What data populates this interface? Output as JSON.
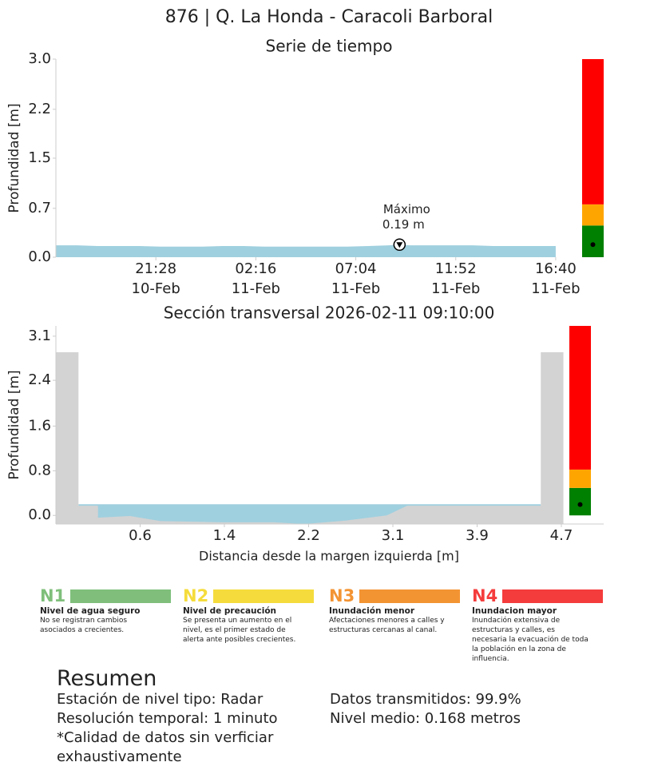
{
  "title": "876 | Q. La Honda - Caracoli Barboral",
  "chart_data": [
    {
      "type": "area",
      "title": "Serie de tiempo",
      "y_label": "Profundidad [m]",
      "color": "#9fd0df",
      "x": [
        "2026-02-10T16:40",
        "2026-02-10T17:40",
        "2026-02-10T18:40",
        "2026-02-10T19:40",
        "2026-02-10T20:40",
        "2026-02-10T21:40",
        "2026-02-10T22:40",
        "2026-02-10T23:40",
        "2026-02-11T00:40",
        "2026-02-11T01:40",
        "2026-02-11T02:40",
        "2026-02-11T03:40",
        "2026-02-11T04:40",
        "2026-02-11T05:40",
        "2026-02-11T06:40",
        "2026-02-11T07:40",
        "2026-02-11T08:40",
        "2026-02-11T09:10",
        "2026-02-11T09:40",
        "2026-02-11T10:40",
        "2026-02-11T11:40",
        "2026-02-11T12:40",
        "2026-02-11T13:40",
        "2026-02-11T14:40",
        "2026-02-11T15:40",
        "2026-02-11T16:40"
      ],
      "values": [
        0.18,
        0.18,
        0.17,
        0.17,
        0.17,
        0.16,
        0.16,
        0.16,
        0.17,
        0.17,
        0.16,
        0.16,
        0.16,
        0.16,
        0.16,
        0.17,
        0.18,
        0.19,
        0.18,
        0.18,
        0.18,
        0.18,
        0.17,
        0.17,
        0.17,
        0.17
      ],
      "xlim": [
        "2026-02-10T16:40",
        "2026-02-11T17:40"
      ],
      "xticks": [
        {
          "value": "2026-02-10T21:28",
          "label": "21:28",
          "sublabel": "10-Feb"
        },
        {
          "value": "2026-02-11T02:16",
          "label": "02:16",
          "sublabel": "11-Feb"
        },
        {
          "value": "2026-02-11T07:04",
          "label": "07:04",
          "sublabel": "11-Feb"
        },
        {
          "value": "2026-02-11T11:52",
          "label": "11:52",
          "sublabel": "11-Feb"
        },
        {
          "value": "2026-02-11T16:40",
          "label": "16:40",
          "sublabel": "11-Feb"
        }
      ],
      "ylim": [
        0,
        3.0
      ],
      "yticks": [
        {
          "value": 0,
          "label": "0.0"
        },
        {
          "value": 0.74,
          "label": "0.7"
        },
        1.5,
        {
          "value": 2.24,
          "label": "2.2"
        },
        {
          "value": 3.0,
          "label": "3.0"
        }
      ],
      "annotation": {
        "label": "Máximo",
        "text": "0.19 m",
        "x": "2026-02-11T09:10",
        "y": 0.19
      },
      "gauge": {
        "value": 0.19,
        "bands": [
          {
            "color": "#008000",
            "from": 0,
            "to": 0.48
          },
          {
            "color": "#ffa500",
            "from": 0.48,
            "to": 0.8
          },
          {
            "color": "#ff0000",
            "from": 0.8,
            "to": 3.0
          }
        ]
      }
    },
    {
      "type": "cross_section",
      "title": "Sección transversal 2026-02-11 09:10:00",
      "y_label": "Profundidad [m]",
      "x_label": "Distancia desde la margen izquierda [m]",
      "color": "#9fd0df",
      "bed_color": "#d3d3d3",
      "x": [
        -0.22,
        0,
        0,
        0.19,
        0.19,
        0.5,
        0.8,
        1.4,
        1.9,
        2.2,
        2.6,
        3.0,
        3.2,
        4.5,
        4.5,
        4.72
      ],
      "values": [
        2.85,
        2.85,
        0.17,
        0.17,
        -0.04,
        -0.01,
        -0.1,
        -0.12,
        -0.12,
        -0.15,
        -0.09,
        0.0,
        0.17,
        0.17,
        2.85,
        2.85
      ],
      "water_level": 0.195,
      "water_x": [
        0,
        4.5
      ],
      "xlim": [
        -0.22,
        4.77
      ],
      "xticks": [
        0.6,
        {
          "value": 1.42,
          "label": "1.4"
        },
        {
          "value": 2.24,
          "label": "2.2"
        },
        {
          "value": 3.06,
          "label": "3.1"
        },
        {
          "value": 3.88,
          "label": "3.9"
        },
        4.7
      ],
      "ylim": [
        -0.15,
        3.31
      ],
      "yticks": [
        {
          "value": 0,
          "label": "0.0"
        },
        {
          "value": 0.78,
          "label": "0.8"
        },
        {
          "value": 1.56,
          "label": "1.6"
        },
        {
          "value": 2.36,
          "label": "2.4"
        },
        {
          "value": 3.13,
          "label": "3.1"
        }
      ],
      "gauge": {
        "value": 0.19,
        "bands": [
          {
            "color": "#008000",
            "from": 0,
            "to": 0.48
          },
          {
            "color": "#ffa500",
            "from": 0.48,
            "to": 0.8
          },
          {
            "color": "#ff0000",
            "from": 0.8,
            "to": 3.31
          }
        ]
      }
    }
  ],
  "levels": [
    {
      "code": "N1",
      "color": "#7fbf7b",
      "title": "Nivel de agua seguro",
      "text": "No se registran cambios asociados a crecientes."
    },
    {
      "code": "N2",
      "color": "#f5dc3c",
      "title": "Nivel de precaución",
      "text": "Se presenta un aumento en el nivel, es el primer estado de alerta ante posibles crecientes."
    },
    {
      "code": "N3",
      "color": "#f39433",
      "title": "Inundación menor",
      "text": "Afectaciones menores a calles y estructuras cercanas al canal."
    },
    {
      "code": "N4",
      "color": "#f53c3c",
      "title": "Inundacion mayor",
      "text": "Inundación extensiva de estructuras y calles, es necesaria la evacuación de toda la población en la zona de influencia."
    }
  ],
  "summary": {
    "title": "Resumen",
    "left": [
      "Estación de nivel tipo: Radar",
      "Resolución temporal: 1 minuto",
      "*Calidad de datos sin verficiar exhaustivamente"
    ],
    "right": [
      "Datos transmitidos: 99.9%",
      "Nivel medio: 0.168 metros"
    ]
  }
}
